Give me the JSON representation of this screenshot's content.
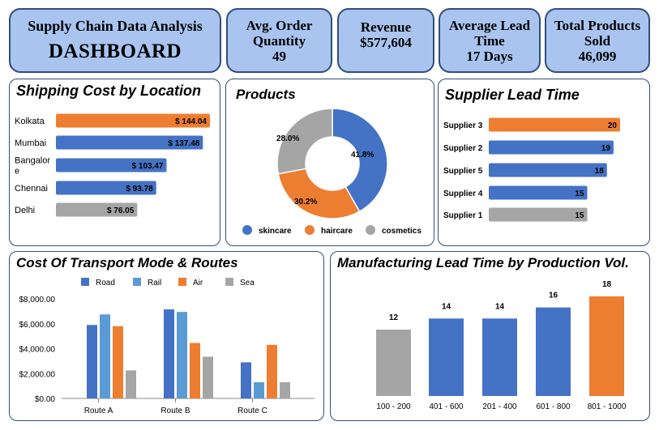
{
  "header": {
    "title_line1": "Supply Chain Data Analysis",
    "title_line2": "DASHBOARD"
  },
  "kpis": {
    "avg_order": {
      "line1": "Avg. Order",
      "line2": "Quantity",
      "value": "49"
    },
    "revenue": {
      "line1": "Revenue",
      "value": "$577,604"
    },
    "lead_time": {
      "line1": "Average Lead",
      "line2": "Time",
      "value": "17 Days"
    },
    "products_sold": {
      "line1": "Total Products",
      "line2": "Sold",
      "value": "46,099"
    }
  },
  "colors": {
    "blue": "#4472c4",
    "orange": "#ed7d31",
    "gray": "#a5a5a5",
    "light_blue": "#5b9bd5",
    "kpi_fill": "#a9c4ef",
    "border": "#2f4f7a"
  },
  "chart_data": [
    {
      "id": "shipping",
      "type": "bar",
      "orientation": "horizontal",
      "title": "Shipping Cost by Location",
      "categories": [
        "Kolkata",
        "Mumbai",
        "Bangalore",
        "Chennai",
        "Delhi"
      ],
      "category_labels": [
        [
          "Kolkata"
        ],
        [
          "Mumbai"
        ],
        [
          "Bangalor",
          "e"
        ],
        [
          "Chennai"
        ],
        [
          "Delhi"
        ]
      ],
      "values": [
        144.04,
        137.48,
        103.47,
        93.78,
        76.05
      ],
      "data_labels": [
        "$ 144.04",
        "$ 137.48",
        "$ 103.47",
        "$ 93.78",
        "$ 76.05"
      ],
      "colors": [
        "orange",
        "blue",
        "blue",
        "blue",
        "gray"
      ]
    },
    {
      "id": "products",
      "type": "pie",
      "title": "Products",
      "categories": [
        "skincare",
        "haircare",
        "cosmetics"
      ],
      "values": [
        41.8,
        30.2,
        28.0
      ],
      "data_labels": [
        "41.8%",
        "30.2%",
        "28.0%"
      ],
      "colors": [
        "blue",
        "orange",
        "gray"
      ],
      "legend": "bottom"
    },
    {
      "id": "supplier",
      "type": "bar",
      "orientation": "horizontal",
      "title": "Supplier Lead Time",
      "categories": [
        "Supplier 3",
        "Supplier 2",
        "Supplier 5",
        "Supplier 4",
        "Supplier 1"
      ],
      "values": [
        20,
        19,
        18,
        15,
        15
      ],
      "data_labels": [
        "20",
        "19",
        "18",
        "15",
        "15"
      ],
      "colors": [
        "orange",
        "blue",
        "blue",
        "blue",
        "gray"
      ]
    },
    {
      "id": "transport",
      "type": "bar",
      "title": "Cost Of Transport Mode & Routes",
      "categories": [
        "Route A",
        "Route B",
        "Route C"
      ],
      "series": [
        {
          "name": "Road",
          "values": [
            5900,
            7150,
            2900
          ],
          "color": "blue"
        },
        {
          "name": "Rail",
          "values": [
            6750,
            6950,
            1300
          ],
          "color": "light_blue"
        },
        {
          "name": "Air",
          "values": [
            5800,
            4450,
            4300
          ],
          "color": "orange"
        },
        {
          "name": "Sea",
          "values": [
            2250,
            3350,
            1300
          ],
          "color": "gray"
        }
      ],
      "yticks": [
        "$0.00",
        "$2,000.00",
        "$4,000.00",
        "$6,000.00",
        "$8,000.00"
      ],
      "ylim": [
        0,
        8000
      ],
      "legend": "top"
    },
    {
      "id": "manufacturing",
      "type": "bar",
      "title": "Manufacturing Lead Time by Production Vol.",
      "categories": [
        "100 - 200",
        "401 - 600",
        "201 - 400",
        "601 - 800",
        "801 - 1000"
      ],
      "values": [
        12,
        14,
        14,
        16,
        18
      ],
      "data_labels": [
        "12",
        "14",
        "14",
        "16",
        "18"
      ],
      "colors": [
        "gray",
        "blue",
        "blue",
        "blue",
        "orange"
      ],
      "ylim": [
        0,
        18
      ]
    }
  ]
}
